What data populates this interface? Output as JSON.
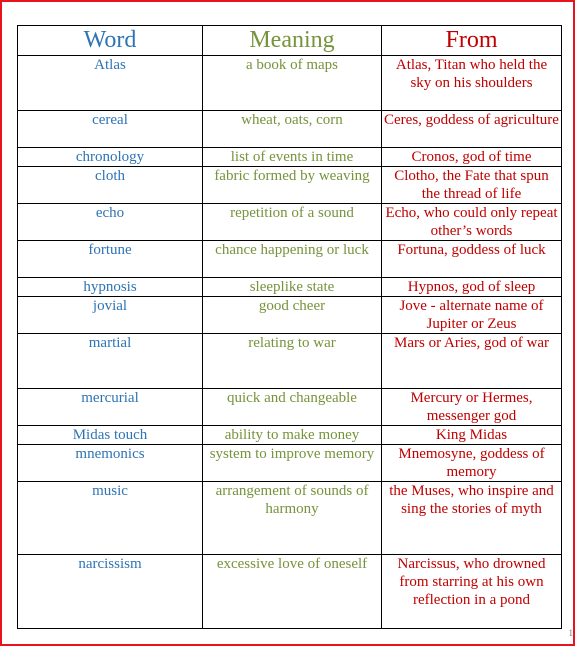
{
  "table": {
    "headers": {
      "word": "Word",
      "meaning": "Meaning",
      "from": "From"
    },
    "rows": [
      {
        "word": "Atlas",
        "meaning": "a book of maps",
        "from": "Atlas, Titan who held the sky on his shoulders"
      },
      {
        "word": "cereal",
        "meaning": "wheat, oats, corn",
        "from": "Ceres, goddess of agriculture"
      },
      {
        "word": "chronology",
        "meaning": "list of events in time",
        "from": "Cronos, god of time"
      },
      {
        "word": "cloth",
        "meaning": "fabric formed by weaving",
        "from": "Clotho, the Fate that spun the thread of life"
      },
      {
        "word": "echo",
        "meaning": "repetition of a sound",
        "from": "Echo, who could only repeat other’s words"
      },
      {
        "word": "fortune",
        "meaning": "chance happening or luck",
        "from": "Fortuna, goddess of luck"
      },
      {
        "word": "hypnosis",
        "meaning": "sleeplike state",
        "from": "Hypnos, god of sleep"
      },
      {
        "word": "jovial",
        "meaning": "good cheer",
        "from": "Jove - alternate name of Jupiter or Zeus"
      },
      {
        "word": "martial",
        "meaning": "relating to war",
        "from": "Mars or Aries, god of war"
      },
      {
        "word": "mercurial",
        "meaning": "quick and changeable",
        "from": "Mercury or Hermes, messenger god"
      },
      {
        "word": "Midas touch",
        "meaning": "ability to make money",
        "from": "King Midas"
      },
      {
        "word": "mnemonics",
        "meaning": "system to improve memory",
        "from": "Mnemosyne, goddess of memory"
      },
      {
        "word": "music",
        "meaning": "arrangement of sounds of harmony",
        "from": "the Muses, who inspire and sing the stories of myth"
      },
      {
        "word": "narcissism",
        "meaning": "excessive love of oneself",
        "from": "Narcissus, who drowned from starring at his own reflection in a pond"
      }
    ]
  },
  "page_mark": "1",
  "colors": {
    "border": "#e8131d",
    "word": "#2e74b5",
    "meaning": "#77933c",
    "from": "#c00000"
  }
}
